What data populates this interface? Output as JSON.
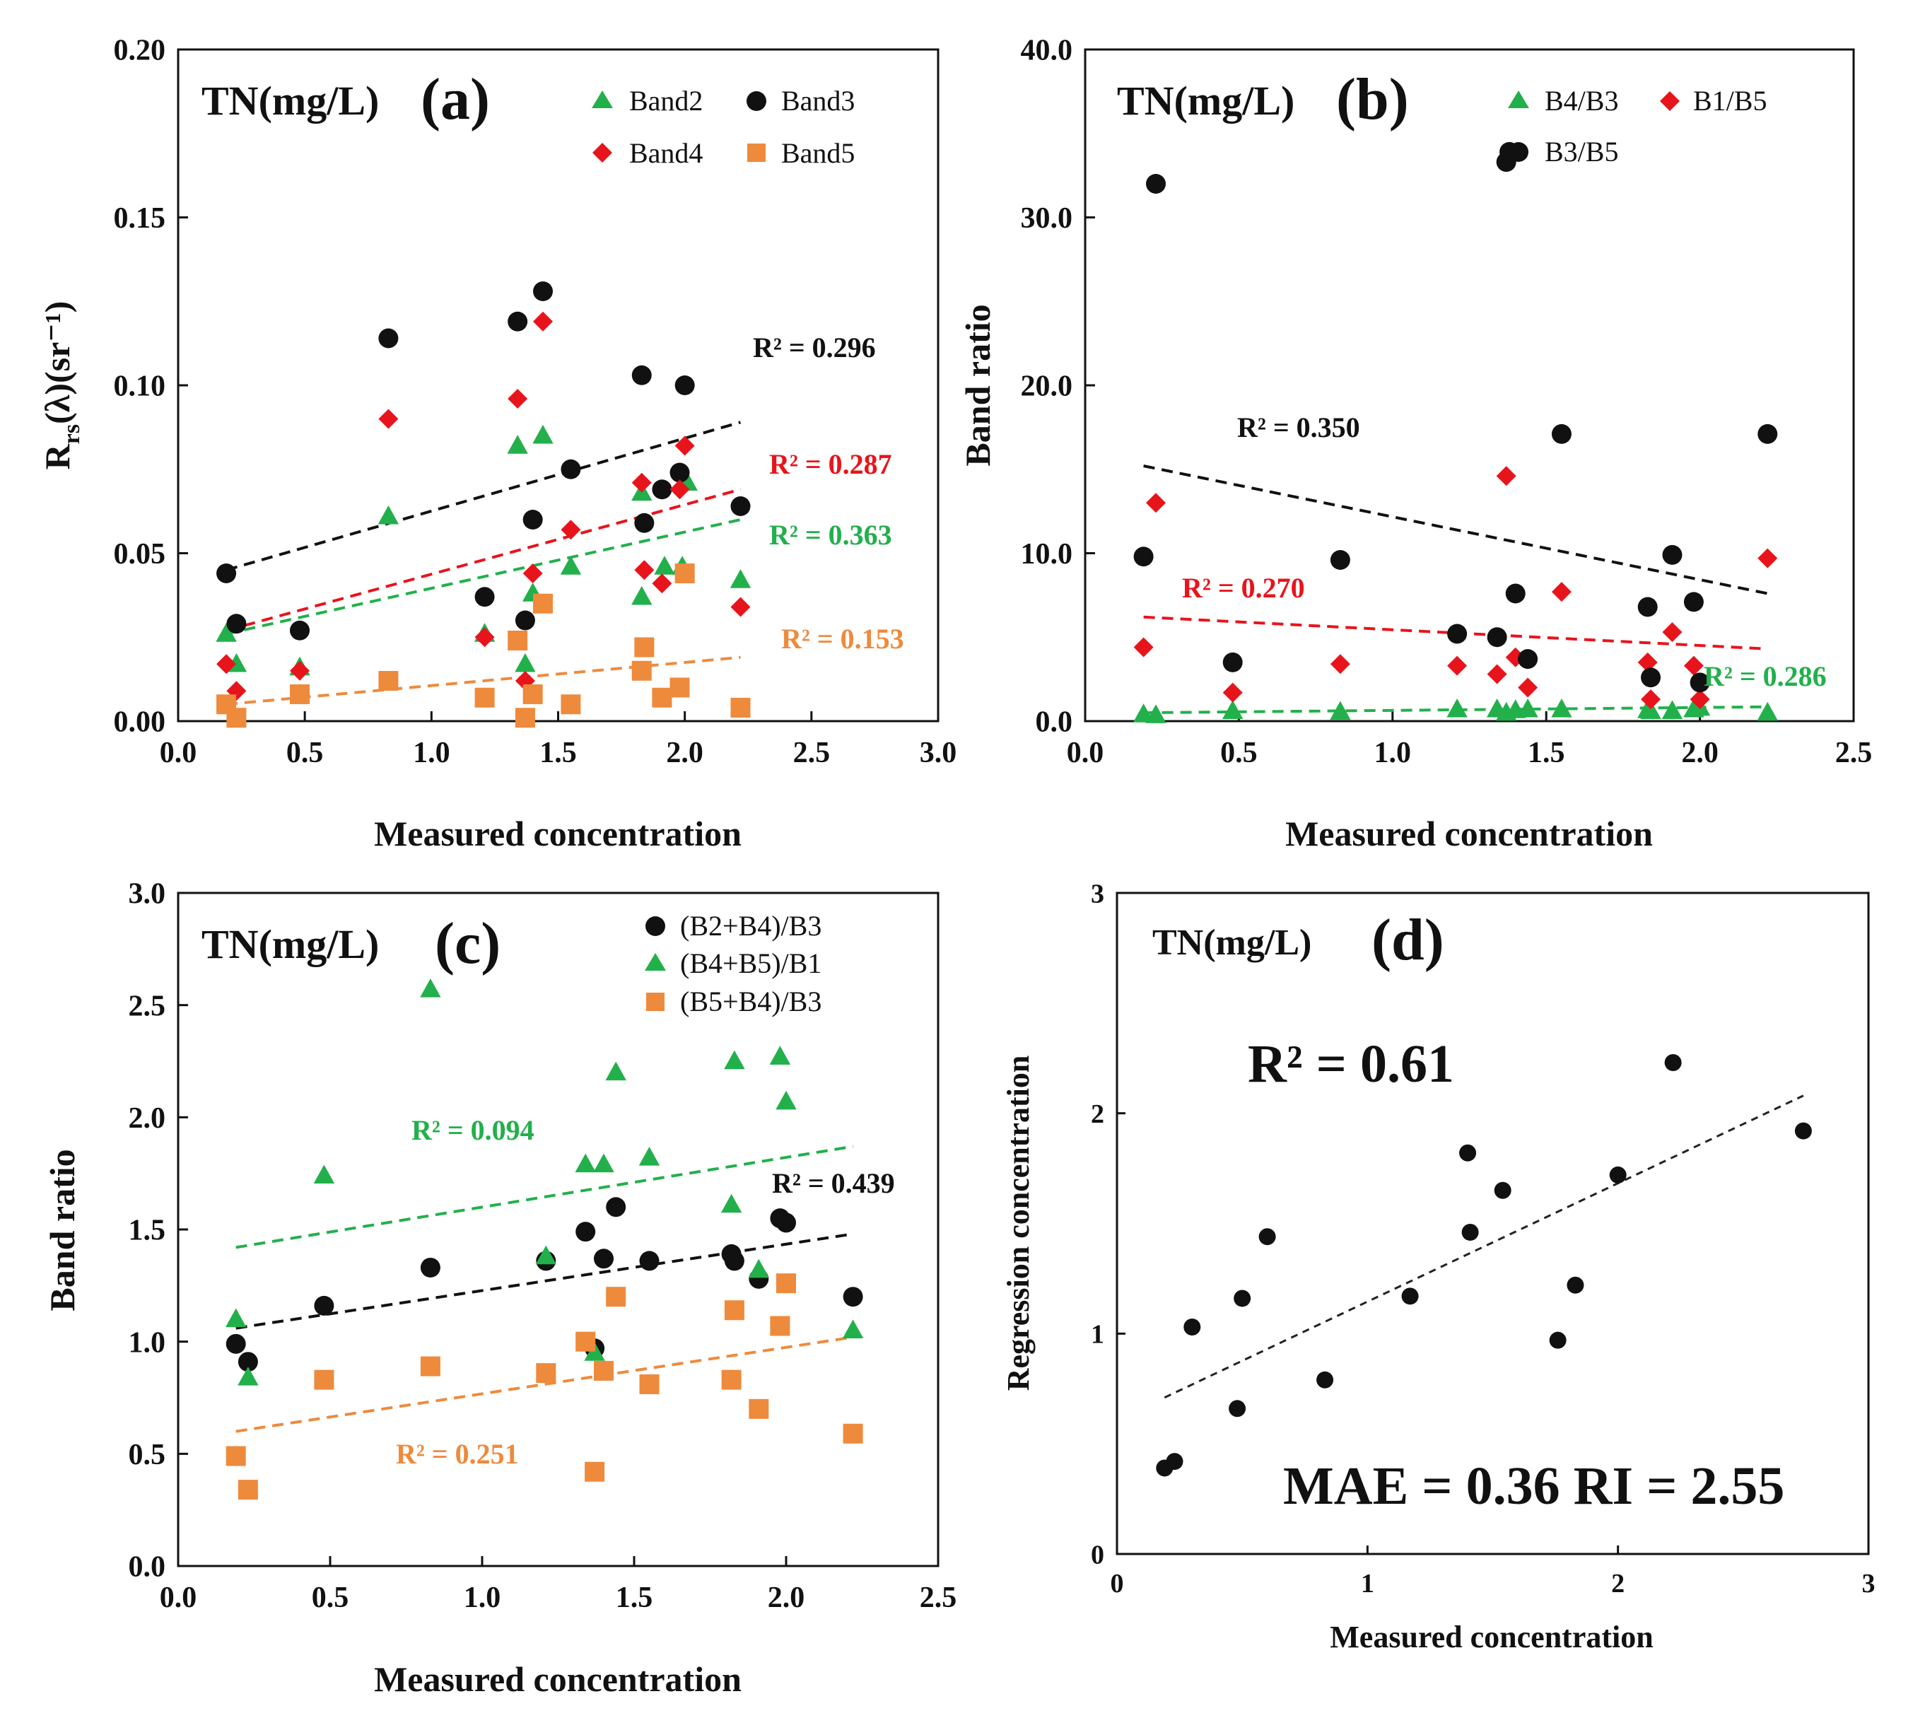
{
  "chart_data": [
    {
      "id": "a",
      "type": "scatter",
      "title": "TN(mg/L)",
      "panel_label": "(a)",
      "xlabel": "Measured concentration",
      "ylabel": "Rrs(λ)(sr⁻¹)",
      "ylabel_main": "R",
      "ylabel_sub": "rs",
      "ylabel_rest": "(λ)(sr⁻¹)",
      "xlim": [
        0,
        3
      ],
      "ylim": [
        0,
        0.2
      ],
      "xticks": [
        "0.0",
        "0.5",
        "1.0",
        "1.5",
        "2.0",
        "2.5",
        "3.0"
      ],
      "yticks": [
        "0.00",
        "0.05",
        "0.10",
        "0.15",
        "0.20"
      ],
      "legend_position": "top-right",
      "series": [
        {
          "name": "Band2",
          "marker": "triangle",
          "color": "#22b04b",
          "x": [
            0.19,
            0.23,
            0.48,
            0.83,
            1.21,
            1.34,
            1.37,
            1.4,
            1.44,
            1.55,
            1.83,
            1.83,
            1.92,
            1.99,
            2.01,
            2.22
          ],
          "y": [
            0.026,
            0.017,
            0.016,
            0.061,
            0.026,
            0.082,
            0.017,
            0.038,
            0.085,
            0.046,
            0.068,
            0.037,
            0.046,
            0.046,
            0.071,
            0.042
          ],
          "fit": {
            "x": [
              0.19,
              2.22
            ],
            "y": [
              0.026,
              0.06
            ],
            "r2_label": "R² = 0.363"
          }
        },
        {
          "name": "Band3",
          "marker": "circle",
          "color": "#111111",
          "x": [
            0.19,
            0.23,
            0.48,
            0.83,
            1.21,
            1.34,
            1.37,
            1.4,
            1.44,
            1.55,
            1.83,
            1.84,
            1.91,
            1.98,
            2.0,
            2.22
          ],
          "y": [
            0.044,
            0.029,
            0.027,
            0.114,
            0.037,
            0.119,
            0.03,
            0.06,
            0.128,
            0.075,
            0.103,
            0.059,
            0.069,
            0.074,
            0.1,
            0.064
          ],
          "fit": {
            "x": [
              0.19,
              2.22
            ],
            "y": [
              0.045,
              0.089
            ],
            "r2_label": "R² = 0.296"
          }
        },
        {
          "name": "Band4",
          "marker": "diamond",
          "color": "#e8141c",
          "x": [
            0.19,
            0.23,
            0.48,
            0.83,
            1.21,
            1.34,
            1.37,
            1.4,
            1.44,
            1.55,
            1.83,
            1.84,
            1.91,
            1.98,
            2.0,
            2.22
          ],
          "y": [
            0.017,
            0.009,
            0.015,
            0.09,
            0.025,
            0.096,
            0.012,
            0.044,
            0.119,
            0.057,
            0.071,
            0.045,
            0.041,
            0.069,
            0.082,
            0.034
          ],
          "fit": {
            "x": [
              0.19,
              2.22
            ],
            "y": [
              0.027,
              0.069
            ],
            "r2_label": "R² = 0.287"
          }
        },
        {
          "name": "Band5",
          "marker": "square",
          "color": "#ee8a3c",
          "x": [
            0.19,
            0.23,
            0.48,
            0.83,
            1.21,
            1.34,
            1.37,
            1.4,
            1.44,
            1.55,
            1.83,
            1.84,
            1.91,
            1.98,
            2.0,
            2.22
          ],
          "y": [
            0.005,
            0.001,
            0.008,
            0.012,
            0.007,
            0.024,
            0.001,
            0.008,
            0.035,
            0.005,
            0.015,
            0.022,
            0.007,
            0.01,
            0.044,
            0.004
          ],
          "fit": {
            "x": [
              0.19,
              2.22
            ],
            "y": [
              0.005,
              0.019
            ],
            "r2_label": "R² = 0.153"
          }
        }
      ]
    },
    {
      "id": "b",
      "type": "scatter",
      "title": "TN(mg/L)",
      "panel_label": "(b)",
      "xlabel": "Measured concentration",
      "ylabel": "Band ratio",
      "xlim": [
        0,
        2.5
      ],
      "ylim": [
        0,
        40
      ],
      "xticks": [
        "0.0",
        "0.5",
        "1.0",
        "1.5",
        "2.0",
        "2.5"
      ],
      "yticks": [
        "0.0",
        "10.0",
        "20.0",
        "30.0",
        "40.0"
      ],
      "legend_position": "top-right",
      "series": [
        {
          "name": "B4/B3",
          "marker": "triangle",
          "color": "#22b04b",
          "x": [
            0.19,
            0.23,
            0.48,
            0.83,
            1.21,
            1.34,
            1.37,
            1.4,
            1.44,
            1.55,
            1.83,
            1.84,
            1.91,
            1.98,
            2.0,
            2.22
          ],
          "y": [
            0.4,
            0.35,
            0.6,
            0.55,
            0.7,
            0.7,
            0.5,
            0.65,
            0.7,
            0.7,
            0.65,
            0.6,
            0.6,
            0.7,
            0.8,
            0.5
          ],
          "fit": {
            "x": [
              0.19,
              2.22
            ],
            "y": [
              0.5,
              0.85
            ],
            "r2_label": "R² = 0.286"
          }
        },
        {
          "name": "B1/B5",
          "marker": "diamond",
          "color": "#e8141c",
          "x": [
            0.19,
            0.23,
            0.48,
            0.83,
            1.21,
            1.34,
            1.37,
            1.4,
            1.44,
            1.55,
            1.83,
            1.84,
            1.91,
            1.98,
            2.0,
            2.22
          ],
          "y": [
            4.4,
            13.0,
            1.7,
            3.4,
            3.3,
            2.8,
            14.6,
            3.8,
            2.0,
            7.7,
            3.5,
            1.3,
            5.3,
            3.3,
            1.3,
            9.7
          ],
          "fit": {
            "x": [
              0.19,
              2.22
            ],
            "y": [
              6.2,
              4.3
            ],
            "r2_label": "R² = 0.270"
          }
        },
        {
          "name": "B3/B5",
          "marker": "circle",
          "color": "#111111",
          "x": [
            0.19,
            0.23,
            0.48,
            0.83,
            1.21,
            1.34,
            1.37,
            1.38,
            1.4,
            1.44,
            1.55,
            1.83,
            1.84,
            1.91,
            1.98,
            2.0,
            2.22
          ],
          "y": [
            9.8,
            32.0,
            3.5,
            9.6,
            5.2,
            5.0,
            33.3,
            33.9,
            7.6,
            3.7,
            17.1,
            6.8,
            2.6,
            9.9,
            7.1,
            2.3,
            17.1
          ],
          "fit": {
            "x": [
              0.19,
              2.22
            ],
            "y": [
              15.2,
              7.6
            ],
            "r2_label": "R² = 0.350"
          }
        }
      ]
    },
    {
      "id": "c",
      "type": "scatter",
      "title": "TN(mg/L)",
      "panel_label": "(c)",
      "xlabel": "Measured concentration",
      "ylabel": "Band ratio",
      "xlim": [
        0,
        2.5
      ],
      "ylim": [
        0,
        3
      ],
      "xticks": [
        "0.0",
        "0.5",
        "1.0",
        "1.5",
        "2.0",
        "2.5"
      ],
      "yticks": [
        "0.0",
        "0.5",
        "1.0",
        "1.5",
        "2.0",
        "2.5",
        "3.0"
      ],
      "legend_position": "top-right",
      "series": [
        {
          "name": "(B2+B4)/B3",
          "marker": "circle",
          "color": "#111111",
          "x": [
            0.19,
            0.23,
            0.48,
            0.83,
            1.21,
            1.34,
            1.37,
            1.4,
            1.44,
            1.55,
            1.82,
            1.83,
            1.91,
            1.98,
            2.0,
            2.22
          ],
          "y": [
            0.99,
            0.91,
            1.16,
            1.33,
            1.36,
            1.49,
            0.97,
            1.37,
            1.6,
            1.36,
            1.39,
            1.36,
            1.28,
            1.55,
            1.53,
            1.2
          ],
          "fit": {
            "x": [
              0.19,
              2.22
            ],
            "y": [
              1.06,
              1.48
            ],
            "r2_label": "R² = 0.439"
          }
        },
        {
          "name": "(B4+B5)/B1",
          "marker": "triangle",
          "color": "#22b04b",
          "x": [
            0.19,
            0.23,
            0.48,
            0.83,
            1.21,
            1.34,
            1.37,
            1.4,
            1.44,
            1.55,
            1.82,
            1.83,
            1.91,
            1.98,
            2.0,
            2.22
          ],
          "y": [
            1.1,
            0.84,
            1.74,
            2.57,
            1.38,
            1.79,
            0.95,
            1.79,
            2.2,
            1.82,
            1.61,
            2.25,
            1.32,
            2.27,
            2.07,
            1.05
          ],
          "fit": {
            "x": [
              0.19,
              2.22
            ],
            "y": [
              1.42,
              1.87
            ],
            "r2_label": "R² = 0.094"
          }
        },
        {
          "name": "(B5+B4)/B3",
          "marker": "square",
          "color": "#ee8a3c",
          "x": [
            0.19,
            0.23,
            0.48,
            0.83,
            1.21,
            1.34,
            1.37,
            1.4,
            1.44,
            1.55,
            1.82,
            1.83,
            1.91,
            1.98,
            2.0,
            2.22
          ],
          "y": [
            0.49,
            0.34,
            0.83,
            0.89,
            0.86,
            1.0,
            0.42,
            0.87,
            1.2,
            0.81,
            0.83,
            1.14,
            0.7,
            1.07,
            1.26,
            0.59
          ],
          "fit": {
            "x": [
              0.19,
              2.22
            ],
            "y": [
              0.6,
              1.02
            ],
            "r2_label": "R² = 0.251"
          }
        }
      ]
    },
    {
      "id": "d",
      "type": "scatter",
      "title": "TN(mg/L)",
      "panel_label": "(d)",
      "xlabel": "Measured concentration",
      "ylabel": "Regression concentration",
      "xlim": [
        0,
        3
      ],
      "ylim": [
        0,
        3
      ],
      "xticks": [
        "0",
        "1",
        "2",
        "3"
      ],
      "yticks": [
        "0",
        "1",
        "2",
        "3"
      ],
      "stats": {
        "r2": "R² = 0.61",
        "mae_ri": "MAE = 0.36 RI = 2.55"
      },
      "series": [
        {
          "name": "TN",
          "marker": "circle",
          "color": "#111111",
          "x": [
            0.19,
            0.23,
            0.3,
            0.48,
            0.5,
            0.6,
            0.83,
            1.17,
            1.4,
            1.41,
            1.54,
            1.76,
            1.83,
            2.0,
            2.22,
            2.74
          ],
          "y": [
            0.39,
            0.42,
            1.03,
            0.66,
            1.16,
            1.44,
            0.79,
            1.17,
            1.82,
            1.46,
            1.65,
            0.97,
            1.22,
            1.72,
            2.23,
            1.92
          ],
          "fit": {
            "x": [
              0.19,
              2.74
            ],
            "y": [
              0.71,
              2.08
            ]
          }
        }
      ]
    }
  ]
}
